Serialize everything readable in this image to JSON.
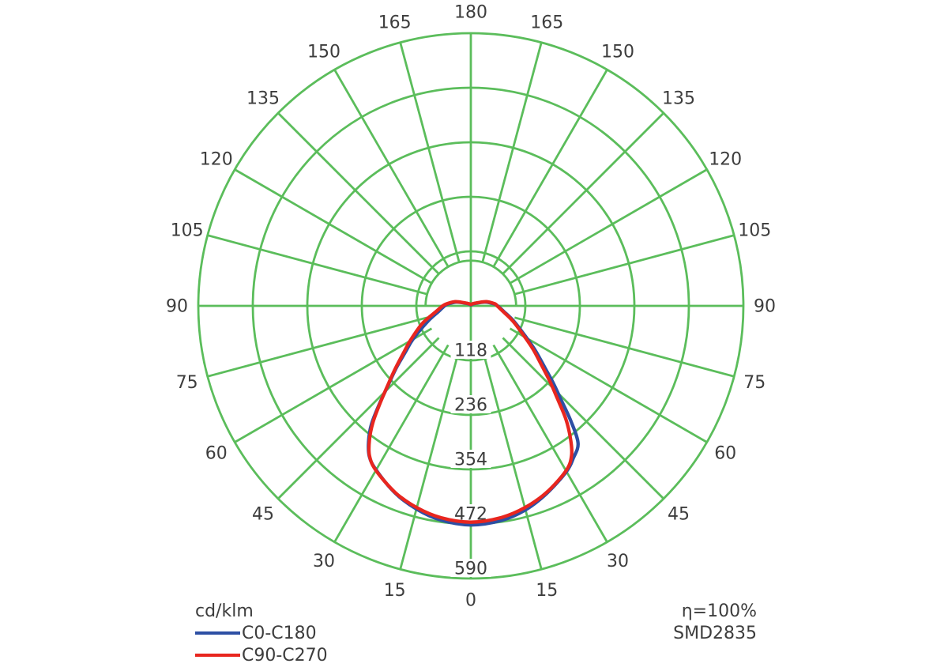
{
  "chart_data": {
    "type": "polar-line",
    "units_label": "cd/klm",
    "angle_unit": "degrees",
    "angle_zero_position": "bottom",
    "mirrored_angle_labels": true,
    "angle_ticks_deg": [
      0,
      15,
      30,
      45,
      60,
      75,
      90,
      105,
      120,
      135,
      150,
      165,
      180
    ],
    "radial_ticks": [
      118,
      236,
      354,
      472,
      590
    ],
    "r_max": 590,
    "inner_hole_r": 98,
    "grid_angle_step_deg": 15,
    "grid_color": "#5bbd5b",
    "text_color": "#3d3d3d",
    "background": "#ffffff",
    "legend_position": "bottom-left",
    "series": [
      {
        "name": "C0-C180",
        "color": "#2d4fa4",
        "points": [
          [
            -140,
            5
          ],
          [
            -115,
            14
          ],
          [
            -105,
            32
          ],
          [
            -95,
            49
          ],
          [
            -90,
            57
          ],
          [
            -80,
            71
          ],
          [
            -70,
            100
          ],
          [
            -60,
            145
          ],
          [
            -55,
            172
          ],
          [
            -50,
            212
          ],
          [
            -46,
            250
          ],
          [
            -43,
            290
          ],
          [
            -40,
            335
          ],
          [
            -37,
            368
          ],
          [
            -34,
            393
          ],
          [
            -30,
            410
          ],
          [
            -22,
            437
          ],
          [
            -15,
            455
          ],
          [
            -8,
            468
          ],
          [
            0,
            474
          ],
          [
            8,
            469
          ],
          [
            15,
            457
          ],
          [
            22,
            438
          ],
          [
            30,
            414
          ],
          [
            34,
            397
          ],
          [
            38,
            377
          ],
          [
            41,
            330
          ],
          [
            44,
            280
          ],
          [
            47,
            243
          ],
          [
            50,
            210
          ],
          [
            55,
            172
          ],
          [
            60,
            140
          ],
          [
            70,
            100
          ],
          [
            80,
            73
          ],
          [
            90,
            58
          ],
          [
            95,
            50
          ],
          [
            105,
            32
          ],
          [
            115,
            14
          ],
          [
            140,
            5
          ],
          [
            180,
            2
          ]
        ]
      },
      {
        "name": "C90-C270",
        "color": "#e8261f",
        "points": [
          [
            -140,
            6
          ],
          [
            -115,
            16
          ],
          [
            -105,
            35
          ],
          [
            -95,
            52
          ],
          [
            -90,
            61
          ],
          [
            -80,
            78
          ],
          [
            -70,
            112
          ],
          [
            -60,
            152
          ],
          [
            -55,
            178
          ],
          [
            -50,
            215
          ],
          [
            -46,
            252
          ],
          [
            -43,
            288
          ],
          [
            -40,
            330
          ],
          [
            -37,
            365
          ],
          [
            -34,
            392
          ],
          [
            -30,
            411
          ],
          [
            -22,
            436
          ],
          [
            -15,
            452
          ],
          [
            -8,
            463
          ],
          [
            0,
            468
          ],
          [
            8,
            463
          ],
          [
            15,
            452
          ],
          [
            22,
            436
          ],
          [
            30,
            412
          ],
          [
            34,
            390
          ],
          [
            37,
            358
          ],
          [
            40,
            320
          ],
          [
            43,
            275
          ],
          [
            46,
            240
          ],
          [
            50,
            200
          ],
          [
            55,
            165
          ],
          [
            60,
            135
          ],
          [
            70,
            97
          ],
          [
            80,
            71
          ],
          [
            90,
            57
          ],
          [
            95,
            52
          ],
          [
            105,
            35
          ],
          [
            115,
            16
          ],
          [
            140,
            6
          ],
          [
            180,
            3
          ]
        ]
      }
    ],
    "annotations": {
      "efficiency": "η=100%",
      "led_type": "SMD2835"
    }
  }
}
